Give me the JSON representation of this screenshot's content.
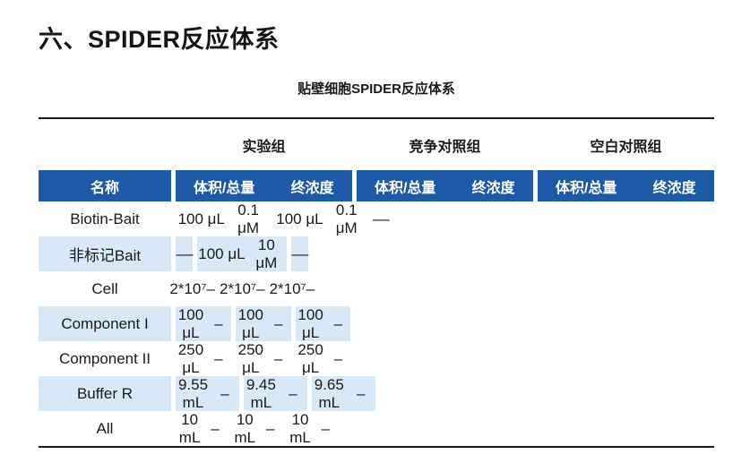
{
  "page": {
    "title": "六、SPIDER反应体系",
    "table_caption": "贴壁细胞SPIDER反应体系"
  },
  "table": {
    "group_headers": [
      "实验组",
      "竞争对照组",
      "空白对照组"
    ],
    "columns": {
      "name": "名称",
      "volume": "体积/总量",
      "concentration": "终浓度"
    },
    "rows": [
      {
        "name": "Biotin-Bait",
        "groups": [
          [
            "100 μL",
            "0.1 μM"
          ],
          [
            "100 μL",
            "0.1 μM"
          ],
          [
            "–",
            "–"
          ]
        ]
      },
      {
        "name": "非标记Bait",
        "groups": [
          [
            "–",
            "–"
          ],
          [
            "100 μL",
            "10 μM"
          ],
          [
            "–",
            "–"
          ]
        ]
      },
      {
        "name": "Cell",
        "groups": [
          [
            "2*10⁷",
            "–"
          ],
          [
            "2*10⁷",
            "–"
          ],
          [
            "2*10⁷",
            "–"
          ]
        ]
      },
      {
        "name": "Component I",
        "groups": [
          [
            "100 μL",
            "–"
          ],
          [
            "100 μL",
            "–"
          ],
          [
            "100 μL",
            "–"
          ]
        ]
      },
      {
        "name": "Component II",
        "groups": [
          [
            "250 μL",
            "–"
          ],
          [
            "250 μL",
            "–"
          ],
          [
            "250 μL",
            "–"
          ]
        ]
      },
      {
        "name": "Buffer R",
        "groups": [
          [
            "9.55 mL",
            "–"
          ],
          [
            "9.45 mL",
            "–"
          ],
          [
            "9.65 mL",
            "–"
          ]
        ]
      },
      {
        "name": "All",
        "groups": [
          [
            "10 mL",
            "–"
          ],
          [
            "10 mL",
            "–"
          ],
          [
            "10 mL",
            "–"
          ]
        ]
      }
    ]
  },
  "colors": {
    "header_bg": "#1E5AA8",
    "row_alt_bg": "#D9E8F7",
    "header_text": "#FFFFFF",
    "rule": "#1A1A1A",
    "text": "#1A1A1A"
  }
}
